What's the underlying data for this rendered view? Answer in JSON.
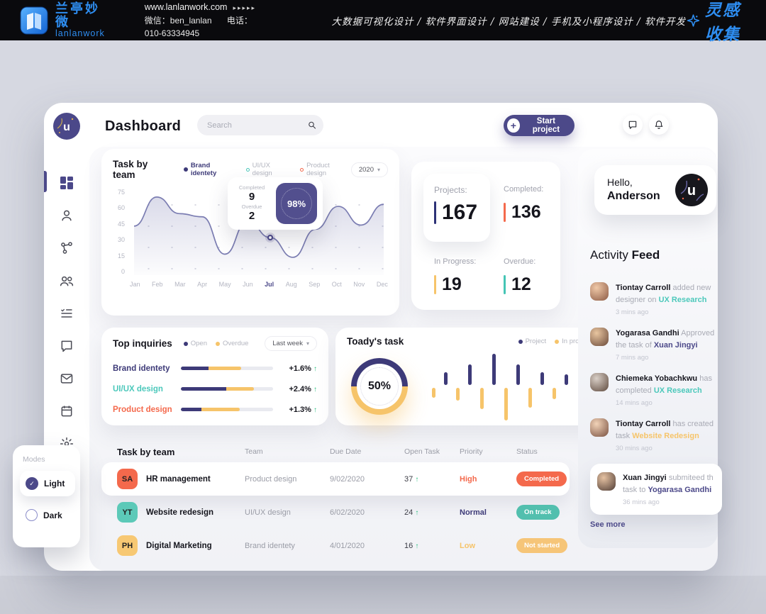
{
  "banner": {
    "brand_cn": "兰亭妙微",
    "brand_en": "lanlanwork",
    "website": "www.lanlanwork.com",
    "arrows": "▸▸▸▸▸",
    "wechat": "微信：ben_lanlan",
    "phone": "电话：010-63334945",
    "services": "大数据可视化设计 / 软件界面设计 / 网站建设 / 手机及小程序设计 / 软件开发",
    "collect": "灵感收集"
  },
  "icons": {
    "up_arrow": "↑",
    "caret": "▾",
    "check": "✓",
    "plus": "+"
  },
  "colors": {
    "accent_purple": "#4C4989",
    "navy": "#3D3A78",
    "teal": "#4CC8BB",
    "orange": "#F4694C",
    "yellow": "#F6C46A",
    "green": "#2BBD7E",
    "banner_blue": "#2E8DF0"
  },
  "header": {
    "title": "Dashboard",
    "search_placeholder": "Search",
    "start_project": "Start project"
  },
  "sidebar": {
    "icons": [
      "dashboard-grid",
      "profile",
      "share-nodes",
      "team",
      "task-list",
      "chat",
      "mail",
      "calendar",
      "settings"
    ]
  },
  "task_by_team_chart": {
    "title": "Task by team",
    "legend": [
      {
        "label": "Brand identety"
      },
      {
        "label": "UI/UX design"
      },
      {
        "label": "Product design"
      }
    ],
    "year_filter": "2020",
    "tooltip": {
      "completed_label": "Completed",
      "completed": "9",
      "overdue_label": "Overdue",
      "overdue": "2",
      "badge": "98%"
    },
    "chart_data": {
      "type": "line",
      "x": [
        "Jan",
        "Feb",
        "Mar",
        "Apr",
        "May",
        "Jun",
        "Jul",
        "Aug",
        "Sep",
        "Oct",
        "Nov",
        "Dec"
      ],
      "values": [
        43,
        71,
        55,
        52,
        16,
        48,
        32,
        13,
        40,
        62,
        44,
        64
      ],
      "ylim": [
        0,
        75
      ],
      "yticks": [
        75,
        60,
        45,
        30,
        15,
        0
      ],
      "active_month": "Jul",
      "marker_index": 6,
      "series_label": "Brand identety"
    }
  },
  "stats": {
    "cards": [
      {
        "label": "Projects:",
        "value": "167"
      },
      {
        "label": "Completed:",
        "value": "136"
      },
      {
        "label": "In Progress:",
        "value": "19"
      },
      {
        "label": "Overdue:",
        "value": "12"
      }
    ]
  },
  "top_inquiries": {
    "title": "Top inquiries",
    "legend": [
      {
        "label": "Open"
      },
      {
        "label": "Overdue"
      }
    ],
    "filter": "Last week",
    "rows": [
      {
        "label": "Brand identety",
        "open": 30,
        "overdue": 35,
        "change": "+1.6%"
      },
      {
        "label": "UI/UX design",
        "open": 49,
        "overdue": 30,
        "change": "+2.4%"
      },
      {
        "label": "Product design",
        "open": 22,
        "overdue": 42,
        "change": "+1.3%"
      }
    ],
    "chart_data": {
      "type": "bar",
      "stacked": true,
      "categories": [
        "Brand identety",
        "UI/UX design",
        "Product design"
      ],
      "series": [
        {
          "name": "Open",
          "values": [
            30,
            49,
            22
          ]
        },
        {
          "name": "Overdue",
          "values": [
            35,
            30,
            42
          ]
        }
      ],
      "unit": "percent of track"
    }
  },
  "todays_task": {
    "title": "Toady's task",
    "legend": [
      {
        "label": "Project"
      },
      {
        "label": "In process"
      }
    ],
    "percent_label": "50%",
    "chart_data": {
      "type": "bar",
      "diverging": true,
      "percent": 50,
      "vmax": 10,
      "up_series": "Project",
      "down_series": "In process",
      "bars": [
        {
          "dir": "down",
          "v": 3
        },
        {
          "dir": "up",
          "v": 4
        },
        {
          "dir": "down",
          "v": 4
        },
        {
          "dir": "up",
          "v": 6.5
        },
        {
          "dir": "down",
          "v": 6.5
        },
        {
          "dir": "up",
          "v": 10
        },
        {
          "dir": "down",
          "v": 10
        },
        {
          "dir": "up",
          "v": 6.5
        },
        {
          "dir": "down",
          "v": 6
        },
        {
          "dir": "up",
          "v": 4
        },
        {
          "dir": "down",
          "v": 3.5
        },
        {
          "dir": "up",
          "v": 3.3
        }
      ]
    }
  },
  "table": {
    "title": "Task by team",
    "columns": [
      "Team",
      "Due Date",
      "Open Task",
      "Priority",
      "Status"
    ],
    "rows": [
      {
        "initials": "SA",
        "name": "HR management",
        "team": "Product design",
        "due": "9/02/2020",
        "open": "37",
        "priority": "High",
        "status": "Completed"
      },
      {
        "initials": "YT",
        "name": "Website redesign",
        "team": "UI/UX design",
        "due": "6/02/2020",
        "open": "24",
        "priority": "Normal",
        "status": "On track"
      },
      {
        "initials": "PH",
        "name": "Digital Marketing",
        "team": "Brand identety",
        "due": "4/01/2020",
        "open": "16",
        "priority": "Low",
        "status": "Not started"
      }
    ]
  },
  "hello_card": {
    "line1": "Hello,",
    "line2": "Anderson"
  },
  "activity_feed": {
    "title_regular": "Activity",
    "title_bold": "Feed",
    "items": [
      {
        "name": "Tiontay Carroll",
        "middle": "added new designer on",
        "highlight": "UX Research",
        "time": "3 mins ago"
      },
      {
        "name": "Yogarasa Gandhi",
        "middle": "Approved the task of",
        "highlight": "Xuan Jingyi",
        "time": "7 mins ago"
      },
      {
        "name": "Chiemeka Yobachkwu",
        "middle": "has completed",
        "highlight": "UX Research",
        "time": "14 mins ago"
      },
      {
        "name": "Tiontay Carroll",
        "middle": "has created task",
        "highlight": "Website Redesign",
        "time": "30 mins ago"
      },
      {
        "name": "Xuan Jingyi",
        "middle": "submiteed th task to",
        "highlight": "Yogarasa Gandhi",
        "time": "36 mins ago"
      }
    ],
    "see_more": "See more"
  },
  "modes": {
    "label": "Modes",
    "options": [
      {
        "label": "Light"
      },
      {
        "label": "Dark"
      }
    ]
  }
}
